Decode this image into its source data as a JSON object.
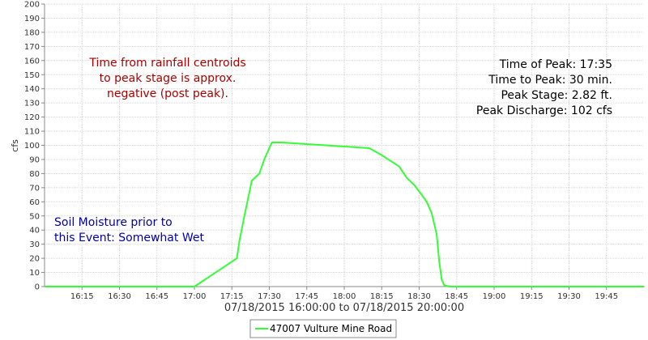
{
  "chart_data": {
    "type": "line",
    "title": "",
    "xlabel": "07/18/2015 16:00:00 to 07/18/2015 20:00:00",
    "ylabel": "cfs",
    "xlim": [
      "16:00",
      "20:00"
    ],
    "ylim": [
      0,
      200
    ],
    "y_ticks": [
      0,
      10,
      20,
      30,
      40,
      50,
      60,
      70,
      80,
      90,
      100,
      110,
      120,
      130,
      140,
      150,
      160,
      170,
      180,
      190,
      200
    ],
    "x_ticks": [
      "16:15",
      "16:30",
      "16:45",
      "17:00",
      "17:15",
      "17:30",
      "17:45",
      "18:00",
      "18:15",
      "18:30",
      "18:45",
      "19:00",
      "19:15",
      "19:30",
      "19:45"
    ],
    "grid": true,
    "legend_position": "bottom-center",
    "series": [
      {
        "name": "47007 Vulture Mine Road",
        "color": "#33ff33",
        "x": [
          "16:00",
          "17:00",
          "17:17",
          "17:18",
          "17:20",
          "17:23",
          "17:26",
          "17:28",
          "17:31",
          "17:35",
          "18:10",
          "18:15",
          "18:22",
          "18:25",
          "18:28",
          "18:31",
          "18:33",
          "18:35",
          "18:37",
          "18:38",
          "18:39",
          "18:40",
          "18:42",
          "18:43",
          "18:44",
          "18:45",
          "20:00"
        ],
        "y": [
          0,
          0,
          20,
          32,
          50,
          75,
          80,
          90,
          102,
          102,
          98,
          93,
          85,
          77,
          72,
          65,
          60,
          52,
          37,
          18,
          5,
          1,
          0,
          0,
          0,
          0,
          0
        ]
      }
    ]
  },
  "annotations": {
    "red_lines": [
      "Time from rainfall centroids",
      "to peak stage is approx.",
      "negative (post peak)."
    ],
    "blue_lines": [
      "Soil Moisture prior to",
      "this Event: Somewhat Wet"
    ],
    "peak_lines": [
      "Time of Peak: 17:35",
      "Time to Peak: 30 min.",
      "Peak Stage: 2.82 ft.",
      "Peak Discharge: 102 cfs"
    ]
  }
}
